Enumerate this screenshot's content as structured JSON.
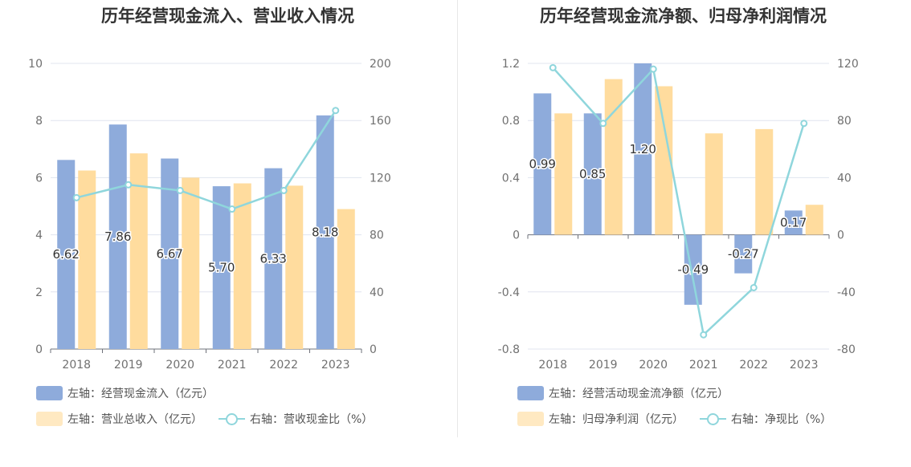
{
  "colors": {
    "bar_primary": "#8eabdb",
    "bar_secondary": "#ffdc9e",
    "line": "#8fd6dc",
    "grid": "#e0e4ef",
    "axis_text": "#707070"
  },
  "chart_data": [
    {
      "type": "bar",
      "title": "历年经营现金流入、营业收入情况",
      "categories": [
        "2018",
        "2019",
        "2020",
        "2021",
        "2022",
        "2023"
      ],
      "y_left": {
        "min": 0,
        "max": 10,
        "ticks": [
          "10",
          "8",
          "6",
          "4",
          "2",
          "0"
        ]
      },
      "y_right": {
        "min": 0,
        "max": 200,
        "ticks": [
          "200",
          "160",
          "120",
          "80",
          "40",
          "0"
        ]
      },
      "series": [
        {
          "name": "左轴：经营现金流入（亿元）",
          "kind": "bar",
          "axis": "left",
          "values": [
            6.62,
            7.86,
            6.67,
            5.7,
            6.33,
            8.18
          ],
          "labels": [
            "6.62",
            "7.86",
            "6.67",
            "5.70",
            "6.33",
            "8.18"
          ]
        },
        {
          "name": "左轴：营业总收入（亿元）",
          "kind": "bar",
          "axis": "left",
          "values": [
            6.25,
            6.85,
            6.0,
            5.8,
            5.72,
            4.9
          ]
        },
        {
          "name": "右轴：营收现金比（%）",
          "kind": "line",
          "axis": "right",
          "values": [
            106,
            115,
            111,
            98,
            111,
            167
          ]
        }
      ]
    },
    {
      "type": "bar",
      "title": "历年经营现金流净额、归母净利润情况",
      "categories": [
        "2018",
        "2019",
        "2020",
        "2021",
        "2022",
        "2023"
      ],
      "y_left": {
        "min": -0.8,
        "max": 1.2,
        "ticks": [
          "1.2",
          "0.8",
          "0.4",
          "0",
          "-0.4",
          "-0.8"
        ]
      },
      "y_right": {
        "min": -80,
        "max": 120,
        "ticks": [
          "120",
          "80",
          "40",
          "0",
          "-40",
          "-80"
        ]
      },
      "series": [
        {
          "name": "左轴：经营活动现金流净额（亿元）",
          "kind": "bar",
          "axis": "left",
          "values": [
            0.99,
            0.85,
            1.2,
            -0.49,
            -0.27,
            0.17
          ],
          "labels": [
            "0.99",
            "0.85",
            "1.20",
            "-0.49",
            "-0.27",
            "0.17"
          ]
        },
        {
          "name": "左轴：归母净利润（亿元）",
          "kind": "bar",
          "axis": "left",
          "values": [
            0.85,
            1.09,
            1.04,
            0.71,
            0.74,
            0.21
          ]
        },
        {
          "name": "右轴：净现比（%）",
          "kind": "line",
          "axis": "right",
          "values": [
            117,
            78,
            116,
            -70,
            -37,
            78
          ]
        }
      ]
    }
  ]
}
